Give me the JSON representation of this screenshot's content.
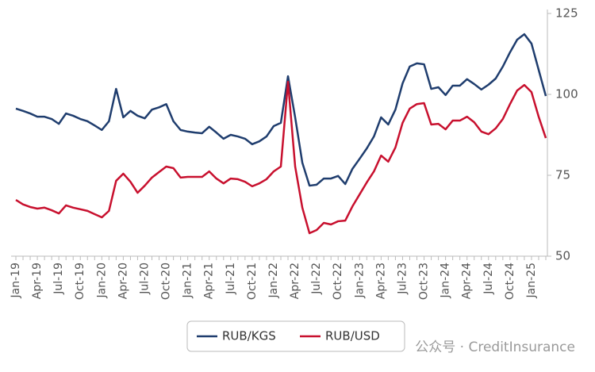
{
  "chart_data": {
    "type": "line",
    "categories": [
      "Jan-19",
      null,
      null,
      "Apr-19",
      null,
      null,
      "Jul-19",
      null,
      null,
      "Oct-19",
      null,
      null,
      "Jan-20",
      null,
      null,
      "Apr-20",
      null,
      null,
      "Jul-20",
      null,
      null,
      "Oct-20",
      null,
      null,
      "Jan-21",
      null,
      null,
      "Apr-21",
      null,
      null,
      "Jul-21",
      null,
      null,
      "Oct-21",
      null,
      null,
      "Jan-22",
      null,
      null,
      "Apr-22",
      null,
      null,
      "Jul-22",
      null,
      null,
      "Oct-22",
      null,
      null,
      "Jan-23",
      null,
      null,
      "Apr-23",
      null,
      null,
      "Jul-23",
      null,
      null,
      "Oct-23",
      null,
      null,
      "Jan-24",
      null,
      null,
      "Apr-24",
      null,
      null,
      "Jul-24",
      null,
      null,
      "Oct-24",
      null,
      null,
      "Jan-25",
      null,
      null
    ],
    "series": [
      {
        "name": "RUB/KGS",
        "color": "#1f3d6e",
        "values": [
          95.6,
          94.9,
          94.1,
          93.1,
          93.1,
          92.4,
          90.9,
          94.1,
          93.4,
          92.4,
          91.7,
          90.4,
          89,
          91.7,
          101.7,
          92.9,
          94.9,
          93.4,
          92.6,
          95.3,
          96,
          97,
          91.7,
          89,
          88.5,
          88.2,
          88,
          90,
          88.2,
          86.3,
          87.5,
          87,
          86.3,
          84.6,
          85.5,
          87,
          90.2,
          91.2,
          105.6,
          92.9,
          78.9,
          71.8,
          72.1,
          74,
          74,
          74.8,
          72.3,
          77,
          80.1,
          83.3,
          87,
          92.9,
          90.7,
          95.3,
          103.4,
          108.6,
          109.6,
          109.3,
          101.7,
          102.2,
          99.8,
          102.7,
          102.7,
          104.7,
          103.2,
          101.5,
          103,
          104.9,
          108.6,
          113,
          116.9,
          118.6,
          115.7,
          107.6,
          99.5
        ]
      },
      {
        "name": "RUB/USD",
        "color": "#c8102e",
        "values": [
          67.4,
          66,
          65.2,
          64.7,
          65,
          64.2,
          63.2,
          65.7,
          65,
          64.5,
          64,
          63,
          62,
          64,
          73.3,
          75.5,
          73,
          69.6,
          71.8,
          74.3,
          76,
          77.7,
          77.2,
          74.3,
          74.5,
          74.5,
          74.5,
          76.2,
          74,
          72.5,
          74,
          73.8,
          73,
          71.6,
          72.5,
          73.8,
          76.2,
          77.7,
          103.9,
          77.7,
          65,
          57.1,
          58.1,
          60.3,
          59.8,
          60.8,
          61,
          65.4,
          69.1,
          72.8,
          76.2,
          81.1,
          79.2,
          83.6,
          91.2,
          95.6,
          97,
          97.3,
          90.7,
          90.9,
          89.2,
          91.9,
          91.9,
          93.1,
          91.4,
          88.5,
          87.7,
          89.5,
          92.4,
          97,
          101.2,
          102.9,
          100.7,
          93.1,
          86.5
        ]
      }
    ],
    "ylim": [
      50,
      125
    ],
    "yticks": [
      50,
      75,
      100,
      125
    ],
    "y_axis_side": "right",
    "grid": false,
    "legend": "bottom",
    "annotations": [
      "公众号 · CreditInsurance"
    ]
  }
}
